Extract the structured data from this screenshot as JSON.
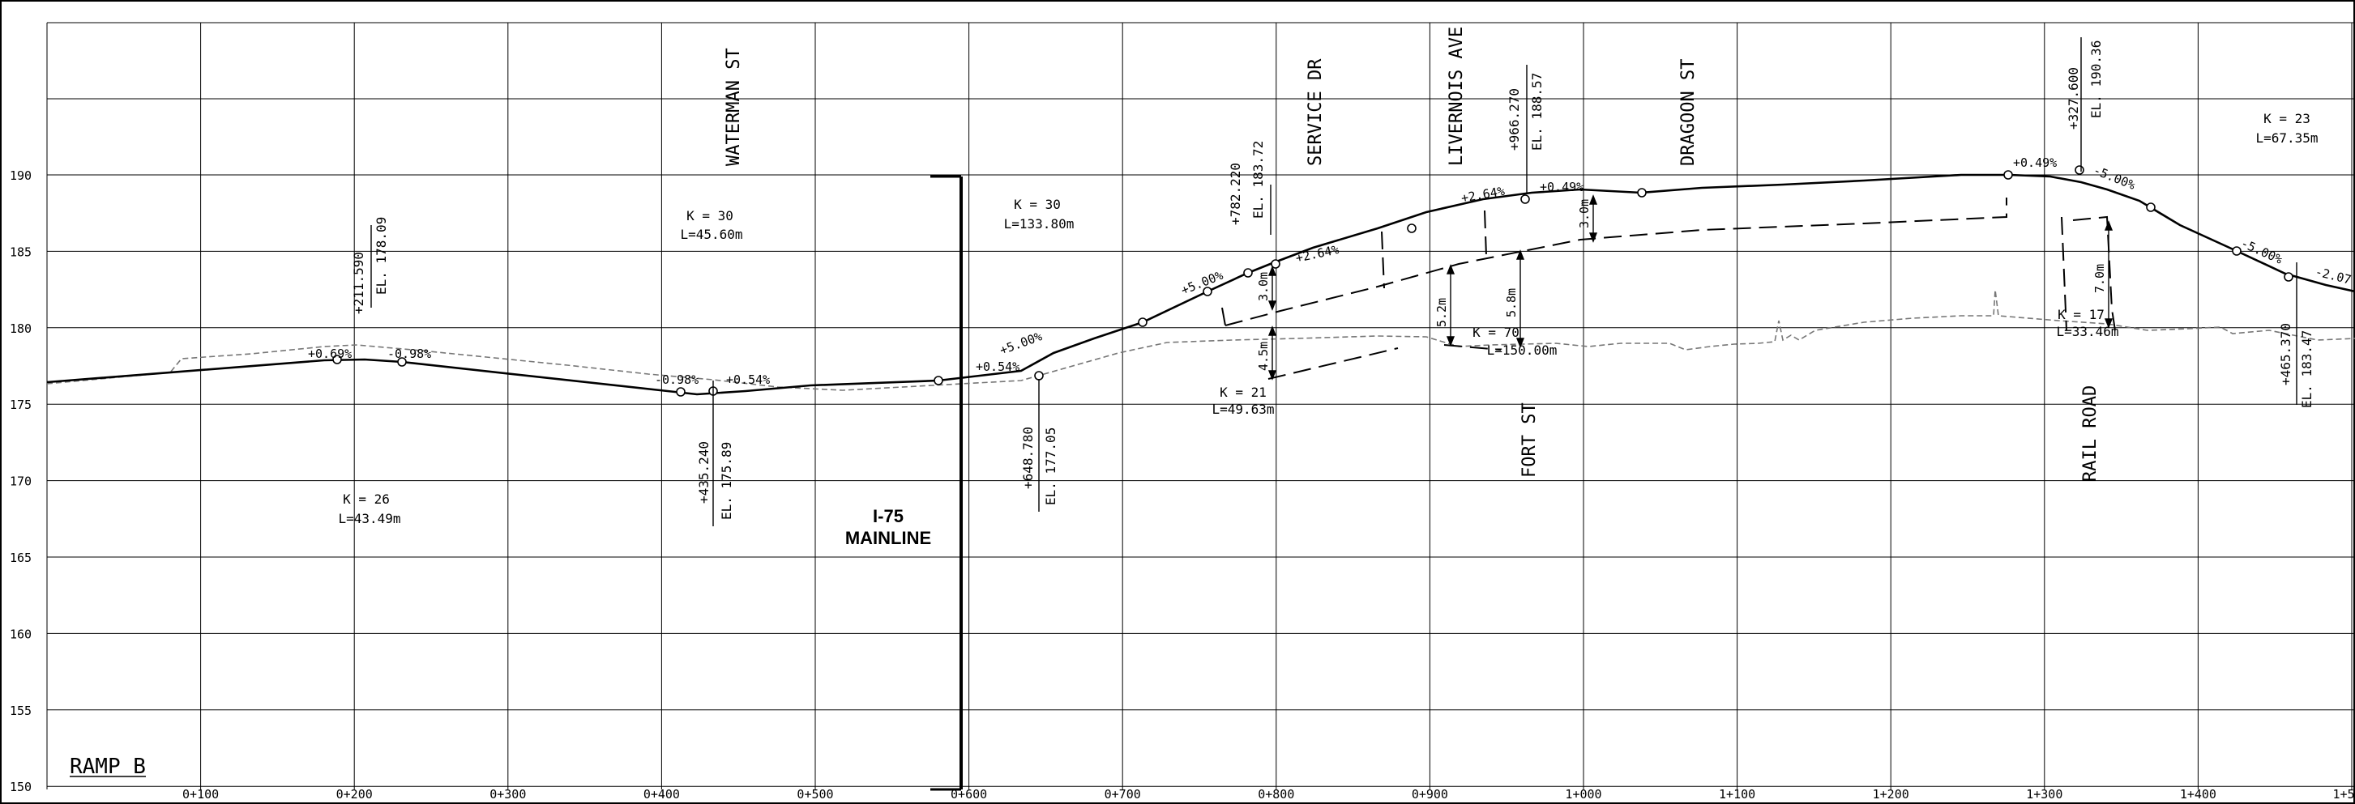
{
  "title": "RAMP B",
  "mainline_label": [
    "I-75",
    "MAINLINE"
  ],
  "elevation_labels": [
    "190",
    "185",
    "180",
    "175",
    "170",
    "165",
    "160",
    "155",
    "150"
  ],
  "station_labels": [
    "0+100",
    "0+200",
    "0+300",
    "0+400",
    "0+500",
    "0+600",
    "0+700",
    "0+800",
    "0+900",
    "1+000",
    "1+100",
    "1+200",
    "1+300",
    "1+400",
    "1+5"
  ],
  "streets": [
    "WATERMAN ST",
    "SERVICE DR",
    "LIVERNOIS AVE",
    "DRAGOON ST",
    "FORT ST",
    "RAIL ROAD"
  ],
  "pvi_labels": [
    {
      "station": "+211.590",
      "elevation": "EL. 178.09"
    },
    {
      "station": "+435.240",
      "elevation": "EL. 175.89"
    },
    {
      "station": "+648.780",
      "elevation": "EL. 177.05"
    },
    {
      "station": "+782.220",
      "elevation": "EL. 183.72"
    },
    {
      "station": "+966.270",
      "elevation": "EL. 188.57"
    },
    {
      "station": "+327.600",
      "elevation": "EL. 190.36"
    },
    {
      "station": "+465.370",
      "elevation": "EL. 183.47"
    }
  ],
  "curve_labels": [
    {
      "k": "K = 26",
      "l": "L=43.49m"
    },
    {
      "k": "K = 30",
      "l": "L=45.60m"
    },
    {
      "k": "K = 30",
      "l": "L=133.80m"
    },
    {
      "k": "K = 21",
      "l": "L=49.63m"
    },
    {
      "k": "K = 70",
      "l": "L=150.00m"
    },
    {
      "k": "K = 17",
      "l": "L=33.46m"
    },
    {
      "k": "K = 23",
      "l": "L=67.35m"
    }
  ],
  "grade_labels": [
    "+0.69%",
    "-0.98%",
    "-0.98%",
    "+0.54%",
    "+0.54%",
    "+5.00%",
    "+5.00%",
    "+2.64%",
    "+2.64%",
    "+0.49%",
    "+0.49%",
    "-5.00%",
    "-5.00%",
    "-2.07"
  ],
  "clearance_labels": [
    "3.0m",
    "4.5m",
    "5.2m",
    "5.8m",
    "3.0m",
    "7.0m"
  ]
}
